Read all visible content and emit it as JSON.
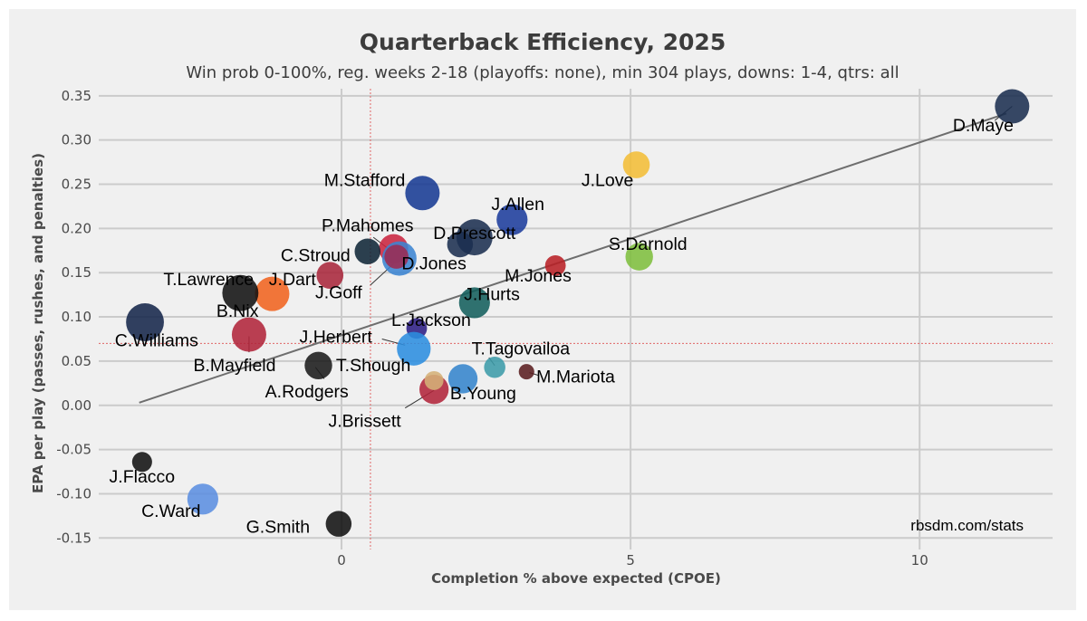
{
  "chart_data": {
    "type": "scatter",
    "title": "Quarterback Efficiency, 2025",
    "subtitle": "Win prob 0-100%, reg. weeks 2-18 (playoffs: none), min 304 plays, downs: 1-4, qtrs: all",
    "xlabel": "Completion % above expected (CPOE)",
    "ylabel": "EPA per play (passes, rushes, and penalties)",
    "xlim": [
      -4.2,
      12.3
    ],
    "ylim": [
      -0.163,
      0.358
    ],
    "x_ticks": [
      {
        "value": 0,
        "label": "0"
      },
      {
        "value": 5,
        "label": "5"
      },
      {
        "value": 10,
        "label": "10"
      }
    ],
    "y_ticks": [
      {
        "value": 0.35,
        "label": "0.35"
      },
      {
        "value": 0.3,
        "label": "0.30"
      },
      {
        "value": 0.25,
        "label": "0.25"
      },
      {
        "value": 0.2,
        "label": "0.20"
      },
      {
        "value": 0.15,
        "label": "0.15"
      },
      {
        "value": 0.1,
        "label": "0.10"
      },
      {
        "value": 0.05,
        "label": "0.05"
      },
      {
        "value": 0.0,
        "label": "0.00"
      },
      {
        "value": -0.05,
        "label": "-0.05"
      },
      {
        "value": -0.1,
        "label": "-0.10"
      },
      {
        "value": -0.15,
        "label": "-0.15"
      }
    ],
    "grid": true,
    "reference_lines": {
      "x_mean": 0.5,
      "y_mean": 0.07,
      "color": "#e06666"
    },
    "trend_line": {
      "x": [
        -3.5,
        11.5
      ],
      "y": [
        0.003,
        0.33
      ],
      "color": "#6e6e6e"
    },
    "credit": "rbsdm.com/stats",
    "points": [
      {
        "name": "D.Maye",
        "x": 11.6,
        "y": 0.338,
        "size": 1.0,
        "color": "#1b2f50"
      },
      {
        "name": "J.Love",
        "x": 5.1,
        "y": 0.272,
        "size": 0.78,
        "color": "#f2bd37"
      },
      {
        "name": "M.Stafford",
        "x": 1.4,
        "y": 0.24,
        "size": 1.0,
        "color": "#173a93"
      },
      {
        "name": "J.Allen",
        "x": 2.95,
        "y": 0.21,
        "size": 0.9,
        "color": "#1d3c9c"
      },
      {
        "name": "D.Prescott",
        "x": 2.3,
        "y": 0.19,
        "size": 1.05,
        "color": "#1b2f50"
      },
      {
        "name": "D.Prescott-2",
        "x": 2.05,
        "y": 0.182,
        "size": 0.75,
        "color": "#1b2f50"
      },
      {
        "name": "S.Darnold",
        "x": 5.15,
        "y": 0.168,
        "size": 0.8,
        "color": "#7ebe3e"
      },
      {
        "name": "P.Mahomes",
        "x": 0.9,
        "y": 0.177,
        "size": 0.85,
        "color": "#c9243f"
      },
      {
        "name": "C.Stroud",
        "x": 0.45,
        "y": 0.174,
        "size": 0.75,
        "color": "#0f2537"
      },
      {
        "name": "D.Jones",
        "x": 1.0,
        "y": 0.166,
        "size": 1.0,
        "color": "#3b84d1"
      },
      {
        "name": "J.Goff",
        "x": 0.95,
        "y": 0.168,
        "size": 0.7,
        "color": "#9c2b52"
      },
      {
        "name": "M.Jones",
        "x": 3.7,
        "y": 0.158,
        "size": 0.6,
        "color": "#b82025"
      },
      {
        "name": "J.Dart",
        "x": -0.2,
        "y": 0.147,
        "size": 0.78,
        "color": "#a9273b"
      },
      {
        "name": "J.Dart-2",
        "x": -1.2,
        "y": 0.126,
        "size": 1.0,
        "color": "#f0631f"
      },
      {
        "name": "T.Lawrence",
        "x": -1.75,
        "y": 0.127,
        "size": 1.05,
        "color": "#111111"
      },
      {
        "name": "J.Hurts",
        "x": 2.3,
        "y": 0.116,
        "size": 0.9,
        "color": "#135e5c"
      },
      {
        "name": "C.Williams",
        "x": -3.4,
        "y": 0.094,
        "size": 1.1,
        "color": "#14264a"
      },
      {
        "name": "L.Jackson",
        "x": 1.3,
        "y": 0.087,
        "size": 0.6,
        "color": "#2c1e84"
      },
      {
        "name": "B.Nix",
        "x": -1.6,
        "y": 0.08,
        "size": 1.0,
        "color": "#b0243a"
      },
      {
        "name": "J.Herbert",
        "x": 1.25,
        "y": 0.064,
        "size": 0.98,
        "color": "#2b8ddf"
      },
      {
        "name": "T.Tagovailoa",
        "x": 2.65,
        "y": 0.043,
        "size": 0.62,
        "color": "#3c9ba8"
      },
      {
        "name": "M.Mariota",
        "x": 3.2,
        "y": 0.038,
        "size": 0.45,
        "color": "#5a1e20"
      },
      {
        "name": "B.Mayfield",
        "x": -0.4,
        "y": 0.045,
        "size": 0.8,
        "color": "#1a1a1a"
      },
      {
        "name": "T.Shough",
        "x": 2.1,
        "y": 0.03,
        "size": 0.85,
        "color": "#3484cc"
      },
      {
        "name": "B.Young",
        "x": 1.6,
        "y": 0.018,
        "size": 0.85,
        "color": "#b0243a"
      },
      {
        "name": "J.Brissett",
        "x": 1.6,
        "y": 0.028,
        "size": 0.55,
        "color": "#d4b078"
      },
      {
        "name": "J.Flacco",
        "x": -3.45,
        "y": -0.064,
        "size": 0.58,
        "color": "#111111"
      },
      {
        "name": "C.Ward",
        "x": -2.4,
        "y": -0.106,
        "size": 0.9,
        "color": "#5b8ee0"
      },
      {
        "name": "G.Smith",
        "x": -0.05,
        "y": -0.134,
        "size": 0.75,
        "color": "#111111"
      }
    ],
    "labels": [
      {
        "text": "D.Maye",
        "x": 11.1,
        "y": 0.317
      },
      {
        "text": "J.Love",
        "x": 4.6,
        "y": 0.255
      },
      {
        "text": "M.Stafford",
        "x": 0.4,
        "y": 0.255
      },
      {
        "text": "J.Allen",
        "x": 3.05,
        "y": 0.228
      },
      {
        "text": "P.Mahomes",
        "x": 0.45,
        "y": 0.204
      },
      {
        "text": "D.Prescott",
        "x": 2.3,
        "y": 0.195
      },
      {
        "text": "S.Darnold",
        "x": 5.3,
        "y": 0.183
      },
      {
        "text": "C.Stroud",
        "x": -0.45,
        "y": 0.17
      },
      {
        "text": "D.Jones",
        "x": 1.6,
        "y": 0.161
      },
      {
        "text": "M.Jones",
        "x": 3.4,
        "y": 0.147
      },
      {
        "text": "T.Lawrence",
        "x": -2.3,
        "y": 0.143
      },
      {
        "text": "J.Dart",
        "x": -0.85,
        "y": 0.143
      },
      {
        "text": "J.Goff",
        "x": -0.05,
        "y": 0.128
      },
      {
        "text": "J.Hurts",
        "x": 2.6,
        "y": 0.126
      },
      {
        "text": "B.Nix",
        "x": -1.8,
        "y": 0.107
      },
      {
        "text": "L.Jackson",
        "x": 1.55,
        "y": 0.097
      },
      {
        "text": "C.Williams",
        "x": -3.2,
        "y": 0.074
      },
      {
        "text": "J.Herbert",
        "x": -0.1,
        "y": 0.078
      },
      {
        "text": "T.Tagovailoa",
        "x": 3.1,
        "y": 0.065
      },
      {
        "text": "B.Mayfield",
        "x": -1.85,
        "y": 0.046
      },
      {
        "text": "T.Shough",
        "x": 0.55,
        "y": 0.046
      },
      {
        "text": "M.Mariota",
        "x": 4.05,
        "y": 0.033
      },
      {
        "text": "A.Rodgers",
        "x": -0.6,
        "y": 0.016
      },
      {
        "text": "B.Young",
        "x": 2.45,
        "y": 0.014
      },
      {
        "text": "J.Brissett",
        "x": 0.4,
        "y": -0.017
      },
      {
        "text": "J.Flacco",
        "x": -3.45,
        "y": -0.08
      },
      {
        "text": "C.Ward",
        "x": -2.95,
        "y": -0.119
      },
      {
        "text": "G.Smith",
        "x": -1.1,
        "y": -0.137
      }
    ],
    "leaders": [
      {
        "x1": 11.3,
        "y1": 0.322,
        "x2": 11.6,
        "y2": 0.338
      },
      {
        "x1": 0.55,
        "y1": 0.19,
        "x2": 0.85,
        "y2": 0.175
      },
      {
        "x1": 0.5,
        "y1": 0.136,
        "x2": 0.9,
        "y2": 0.16
      },
      {
        "x1": 0.7,
        "y1": 0.075,
        "x2": 1.1,
        "y2": 0.068
      },
      {
        "x1": -1.6,
        "y1": 0.06,
        "x2": -1.6,
        "y2": 0.078
      },
      {
        "x1": -0.3,
        "y1": 0.03,
        "x2": -0.45,
        "y2": 0.043
      },
      {
        "x1": 2.55,
        "y1": 0.054,
        "x2": 2.65,
        "y2": 0.045
      },
      {
        "x1": 3.4,
        "y1": 0.034,
        "x2": 3.25,
        "y2": 0.037
      },
      {
        "x1": 1.1,
        "y1": -0.003,
        "x2": 1.6,
        "y2": 0.017
      }
    ]
  }
}
